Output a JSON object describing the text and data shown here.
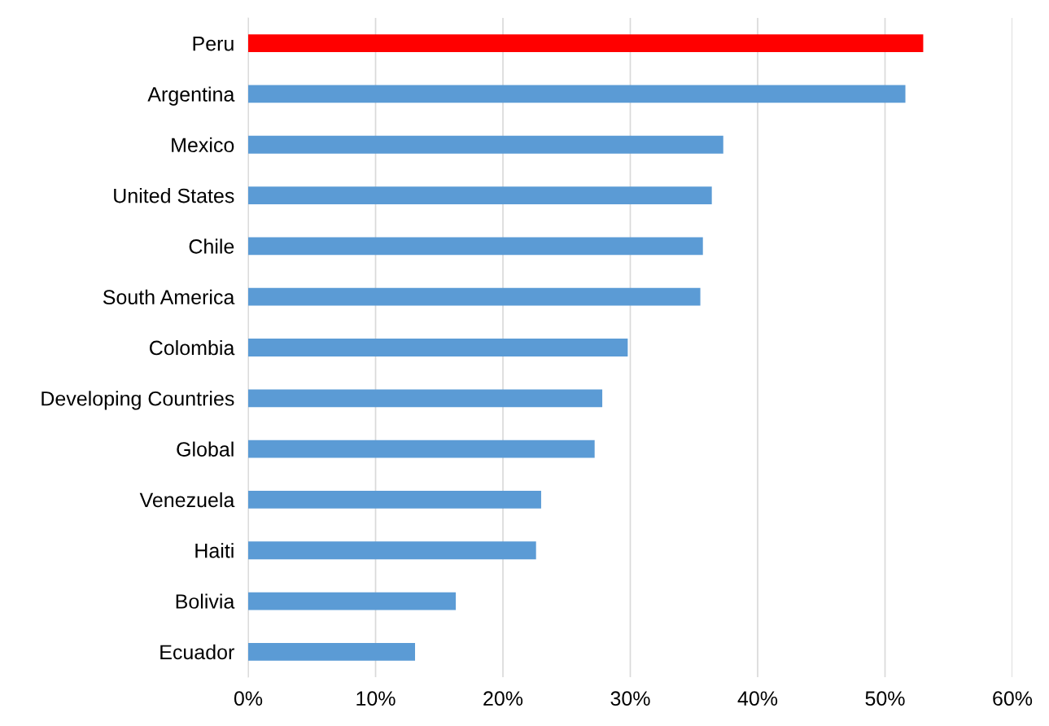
{
  "chart_data": {
    "type": "bar",
    "orientation": "horizontal",
    "categories": [
      "Peru",
      "Argentina",
      "Mexico",
      "United States",
      "Chile",
      "South America",
      "Colombia",
      "Developing Countries",
      "Global",
      "Venezuela",
      "Haiti",
      "Bolivia",
      "Ecuador"
    ],
    "values": [
      53.0,
      51.6,
      37.3,
      36.4,
      35.7,
      35.5,
      29.8,
      27.8,
      27.2,
      23.0,
      22.6,
      16.3,
      13.1
    ],
    "colors": [
      "#ff0000",
      "#5b9bd5",
      "#5b9bd5",
      "#5b9bd5",
      "#5b9bd5",
      "#5b9bd5",
      "#5b9bd5",
      "#5b9bd5",
      "#5b9bd5",
      "#5b9bd5",
      "#5b9bd5",
      "#5b9bd5",
      "#5b9bd5"
    ],
    "xlim": [
      0,
      60
    ],
    "xticks": [
      {
        "value": 0,
        "label": "0%"
      },
      {
        "value": 10,
        "label": "10%"
      },
      {
        "value": 20,
        "label": "20%"
      },
      {
        "value": 30,
        "label": "30%"
      },
      {
        "value": 40,
        "label": "40%"
      },
      {
        "value": 50,
        "label": "50%"
      },
      {
        "value": 60,
        "label": "60%"
      }
    ],
    "grid": "x",
    "legend": false
  }
}
